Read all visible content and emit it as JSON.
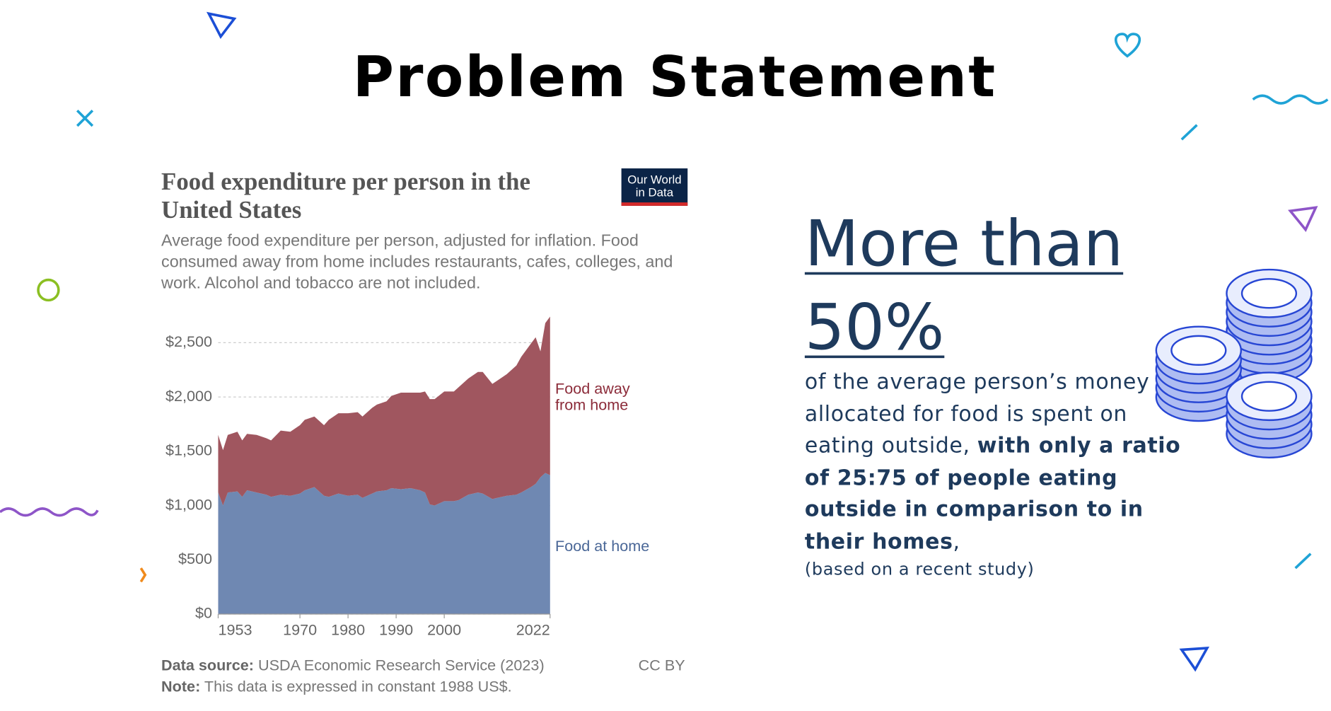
{
  "title": "Problem Statement",
  "chart_data": {
    "type": "stacked_area",
    "title": "Food expenditure per person in the United States",
    "subtitle": "Average food expenditure per person, adjusted for inflation. Food consumed away from home includes restaurants, cafes, colleges, and work. Alcohol and tobacco are not included.",
    "logo": [
      "Our World",
      "in Data"
    ],
    "x": [
      1953,
      1954,
      1955,
      1957,
      1958,
      1959,
      1961,
      1963,
      1964,
      1966,
      1968,
      1970,
      1971,
      1973,
      1975,
      1976,
      1978,
      1980,
      1982,
      1983,
      1985,
      1986,
      1988,
      1989,
      1991,
      1993,
      1995,
      1996,
      1997,
      1998,
      2000,
      2002,
      2003,
      2005,
      2007,
      2008,
      2010,
      2011,
      2013,
      2015,
      2016,
      2018,
      2019,
      2020,
      2021,
      2022
    ],
    "series": [
      {
        "name": "Food at home",
        "color": "#6f88b2",
        "label_color": "#4a6797",
        "values": [
          1120,
          1000,
          1120,
          1130,
          1080,
          1140,
          1120,
          1100,
          1080,
          1100,
          1090,
          1110,
          1140,
          1170,
          1090,
          1080,
          1110,
          1090,
          1100,
          1070,
          1110,
          1130,
          1140,
          1160,
          1150,
          1160,
          1140,
          1120,
          1010,
          1000,
          1040,
          1040,
          1050,
          1100,
          1120,
          1110,
          1060,
          1070,
          1090,
          1100,
          1120,
          1170,
          1200,
          1260,
          1300,
          1280
        ]
      },
      {
        "name": "Food away from home",
        "color": "#a0565f",
        "label_color": "#8c2c3a",
        "values": [
          530,
          510,
          530,
          550,
          520,
          520,
          530,
          520,
          520,
          590,
          590,
          630,
          650,
          650,
          650,
          710,
          740,
          760,
          760,
          750,
          790,
          800,
          820,
          850,
          890,
          880,
          900,
          930,
          970,
          980,
          1010,
          1010,
          1040,
          1070,
          1110,
          1120,
          1060,
          1080,
          1120,
          1190,
          1250,
          1320,
          1350,
          1160,
          1380,
          1460
        ]
      }
    ],
    "xlim": [
      1953,
      2022
    ],
    "xticks": [
      1953,
      1970,
      1980,
      1990,
      2000,
      2022
    ],
    "ylim": [
      0,
      2750
    ],
    "yticks": [
      {
        "value": 0,
        "label": "$0"
      },
      {
        "value": 500,
        "label": "$500"
      },
      {
        "value": 1000,
        "label": "$1,000"
      },
      {
        "value": 1500,
        "label": "$1,500"
      },
      {
        "value": 2000,
        "label": "$2,000"
      },
      {
        "value": 2500,
        "label": "$2,500"
      }
    ],
    "grid": true,
    "source": {
      "label": "Data source:",
      "text": "USDA Economic Research Service (2023)"
    },
    "note": {
      "label": "Note:",
      "text": "This data is expressed in constant 1988 US$."
    },
    "license": "CC BY"
  },
  "statement": {
    "headline": "More than 50%",
    "text": "of the average person’s money allocated for food is spent on eating outside, ",
    "bold": "with only a ratio of 25:75 of people eating outside in comparison to in their homes",
    "tail": ",",
    "note": "(based on a recent study)"
  }
}
